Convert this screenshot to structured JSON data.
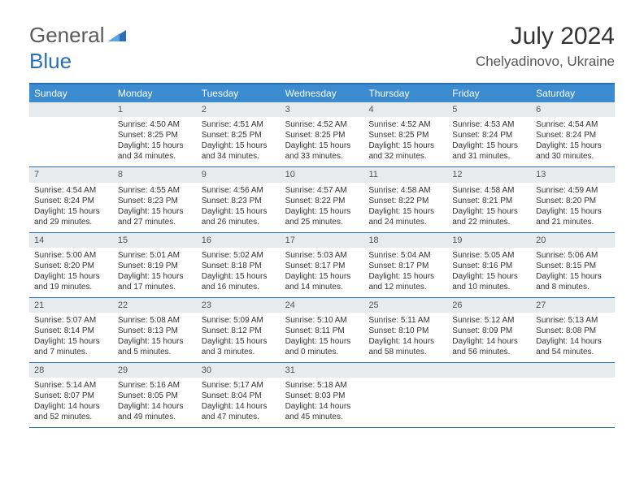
{
  "logo": {
    "text_general": "General",
    "text_blue": "Blue",
    "icon_color": "#2a6fb5"
  },
  "title": "July 2024",
  "location": "Chelyadinovo, Ukraine",
  "weekdays": [
    "Sunday",
    "Monday",
    "Tuesday",
    "Wednesday",
    "Thursday",
    "Friday",
    "Saturday"
  ],
  "colors": {
    "header_bar": "#3b8bd1",
    "border": "#2a6fb5",
    "daynum_bg": "#e8ebee",
    "text": "#333333"
  },
  "weeks": [
    [
      {
        "n": "",
        "sr": "",
        "ss": "",
        "dl1": "",
        "dl2": ""
      },
      {
        "n": "1",
        "sr": "Sunrise: 4:50 AM",
        "ss": "Sunset: 8:25 PM",
        "dl1": "Daylight: 15 hours",
        "dl2": "and 34 minutes."
      },
      {
        "n": "2",
        "sr": "Sunrise: 4:51 AM",
        "ss": "Sunset: 8:25 PM",
        "dl1": "Daylight: 15 hours",
        "dl2": "and 34 minutes."
      },
      {
        "n": "3",
        "sr": "Sunrise: 4:52 AM",
        "ss": "Sunset: 8:25 PM",
        "dl1": "Daylight: 15 hours",
        "dl2": "and 33 minutes."
      },
      {
        "n": "4",
        "sr": "Sunrise: 4:52 AM",
        "ss": "Sunset: 8:25 PM",
        "dl1": "Daylight: 15 hours",
        "dl2": "and 32 minutes."
      },
      {
        "n": "5",
        "sr": "Sunrise: 4:53 AM",
        "ss": "Sunset: 8:24 PM",
        "dl1": "Daylight: 15 hours",
        "dl2": "and 31 minutes."
      },
      {
        "n": "6",
        "sr": "Sunrise: 4:54 AM",
        "ss": "Sunset: 8:24 PM",
        "dl1": "Daylight: 15 hours",
        "dl2": "and 30 minutes."
      }
    ],
    [
      {
        "n": "7",
        "sr": "Sunrise: 4:54 AM",
        "ss": "Sunset: 8:24 PM",
        "dl1": "Daylight: 15 hours",
        "dl2": "and 29 minutes."
      },
      {
        "n": "8",
        "sr": "Sunrise: 4:55 AM",
        "ss": "Sunset: 8:23 PM",
        "dl1": "Daylight: 15 hours",
        "dl2": "and 27 minutes."
      },
      {
        "n": "9",
        "sr": "Sunrise: 4:56 AM",
        "ss": "Sunset: 8:23 PM",
        "dl1": "Daylight: 15 hours",
        "dl2": "and 26 minutes."
      },
      {
        "n": "10",
        "sr": "Sunrise: 4:57 AM",
        "ss": "Sunset: 8:22 PM",
        "dl1": "Daylight: 15 hours",
        "dl2": "and 25 minutes."
      },
      {
        "n": "11",
        "sr": "Sunrise: 4:58 AM",
        "ss": "Sunset: 8:22 PM",
        "dl1": "Daylight: 15 hours",
        "dl2": "and 24 minutes."
      },
      {
        "n": "12",
        "sr": "Sunrise: 4:58 AM",
        "ss": "Sunset: 8:21 PM",
        "dl1": "Daylight: 15 hours",
        "dl2": "and 22 minutes."
      },
      {
        "n": "13",
        "sr": "Sunrise: 4:59 AM",
        "ss": "Sunset: 8:20 PM",
        "dl1": "Daylight: 15 hours",
        "dl2": "and 21 minutes."
      }
    ],
    [
      {
        "n": "14",
        "sr": "Sunrise: 5:00 AM",
        "ss": "Sunset: 8:20 PM",
        "dl1": "Daylight: 15 hours",
        "dl2": "and 19 minutes."
      },
      {
        "n": "15",
        "sr": "Sunrise: 5:01 AM",
        "ss": "Sunset: 8:19 PM",
        "dl1": "Daylight: 15 hours",
        "dl2": "and 17 minutes."
      },
      {
        "n": "16",
        "sr": "Sunrise: 5:02 AM",
        "ss": "Sunset: 8:18 PM",
        "dl1": "Daylight: 15 hours",
        "dl2": "and 16 minutes."
      },
      {
        "n": "17",
        "sr": "Sunrise: 5:03 AM",
        "ss": "Sunset: 8:17 PM",
        "dl1": "Daylight: 15 hours",
        "dl2": "and 14 minutes."
      },
      {
        "n": "18",
        "sr": "Sunrise: 5:04 AM",
        "ss": "Sunset: 8:17 PM",
        "dl1": "Daylight: 15 hours",
        "dl2": "and 12 minutes."
      },
      {
        "n": "19",
        "sr": "Sunrise: 5:05 AM",
        "ss": "Sunset: 8:16 PM",
        "dl1": "Daylight: 15 hours",
        "dl2": "and 10 minutes."
      },
      {
        "n": "20",
        "sr": "Sunrise: 5:06 AM",
        "ss": "Sunset: 8:15 PM",
        "dl1": "Daylight: 15 hours",
        "dl2": "and 8 minutes."
      }
    ],
    [
      {
        "n": "21",
        "sr": "Sunrise: 5:07 AM",
        "ss": "Sunset: 8:14 PM",
        "dl1": "Daylight: 15 hours",
        "dl2": "and 7 minutes."
      },
      {
        "n": "22",
        "sr": "Sunrise: 5:08 AM",
        "ss": "Sunset: 8:13 PM",
        "dl1": "Daylight: 15 hours",
        "dl2": "and 5 minutes."
      },
      {
        "n": "23",
        "sr": "Sunrise: 5:09 AM",
        "ss": "Sunset: 8:12 PM",
        "dl1": "Daylight: 15 hours",
        "dl2": "and 3 minutes."
      },
      {
        "n": "24",
        "sr": "Sunrise: 5:10 AM",
        "ss": "Sunset: 8:11 PM",
        "dl1": "Daylight: 15 hours",
        "dl2": "and 0 minutes."
      },
      {
        "n": "25",
        "sr": "Sunrise: 5:11 AM",
        "ss": "Sunset: 8:10 PM",
        "dl1": "Daylight: 14 hours",
        "dl2": "and 58 minutes."
      },
      {
        "n": "26",
        "sr": "Sunrise: 5:12 AM",
        "ss": "Sunset: 8:09 PM",
        "dl1": "Daylight: 14 hours",
        "dl2": "and 56 minutes."
      },
      {
        "n": "27",
        "sr": "Sunrise: 5:13 AM",
        "ss": "Sunset: 8:08 PM",
        "dl1": "Daylight: 14 hours",
        "dl2": "and 54 minutes."
      }
    ],
    [
      {
        "n": "28",
        "sr": "Sunrise: 5:14 AM",
        "ss": "Sunset: 8:07 PM",
        "dl1": "Daylight: 14 hours",
        "dl2": "and 52 minutes."
      },
      {
        "n": "29",
        "sr": "Sunrise: 5:16 AM",
        "ss": "Sunset: 8:05 PM",
        "dl1": "Daylight: 14 hours",
        "dl2": "and 49 minutes."
      },
      {
        "n": "30",
        "sr": "Sunrise: 5:17 AM",
        "ss": "Sunset: 8:04 PM",
        "dl1": "Daylight: 14 hours",
        "dl2": "and 47 minutes."
      },
      {
        "n": "31",
        "sr": "Sunrise: 5:18 AM",
        "ss": "Sunset: 8:03 PM",
        "dl1": "Daylight: 14 hours",
        "dl2": "and 45 minutes."
      },
      {
        "n": "",
        "sr": "",
        "ss": "",
        "dl1": "",
        "dl2": ""
      },
      {
        "n": "",
        "sr": "",
        "ss": "",
        "dl1": "",
        "dl2": ""
      },
      {
        "n": "",
        "sr": "",
        "ss": "",
        "dl1": "",
        "dl2": ""
      }
    ]
  ]
}
